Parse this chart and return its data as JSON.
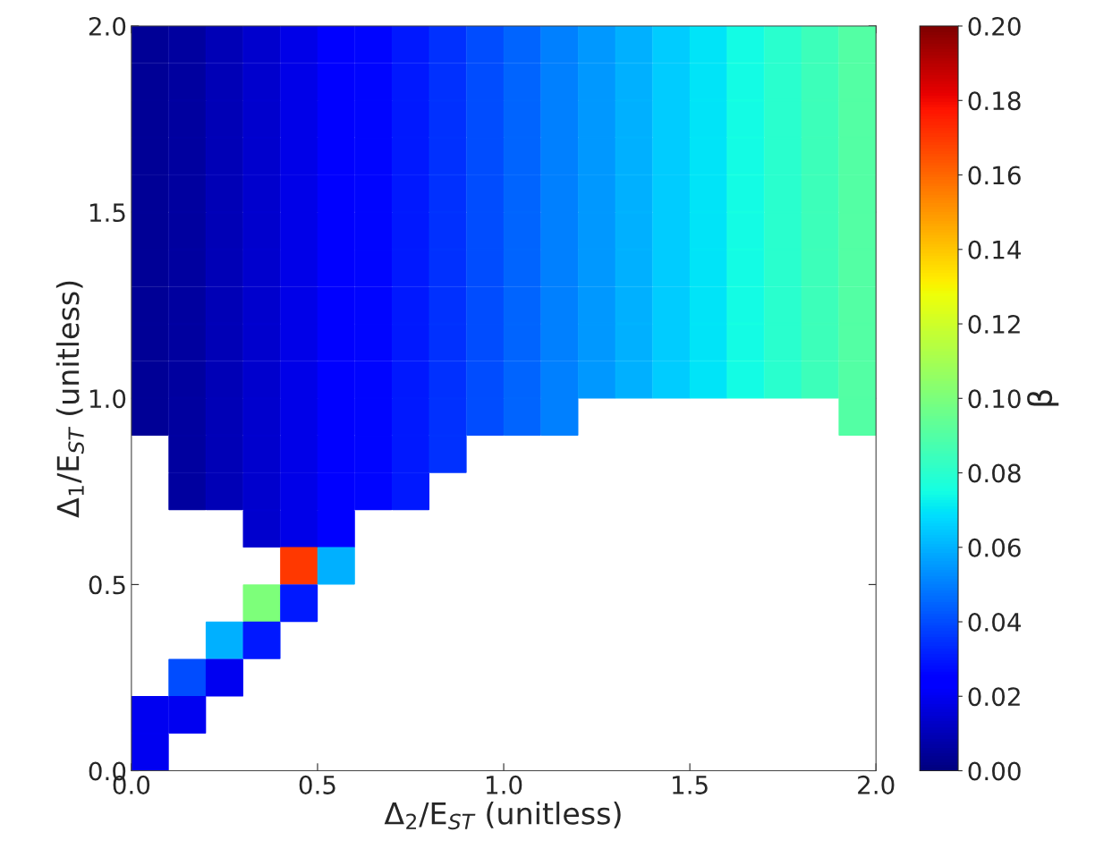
{
  "chart_data": {
    "type": "scatter",
    "xlabel": "Δ$_{2}$/E$_{ST}$ (unitless)",
    "ylabel": "Δ$_{1}$/E$_{ST}$ (unitless)",
    "clabel": "β",
    "marker": "square",
    "xlim": [
      0,
      2
    ],
    "ylim": [
      0,
      2
    ],
    "xticks": [
      {
        "value": 0,
        "label": "0.0"
      },
      {
        "value": 0.5,
        "label": "0.5"
      },
      {
        "value": 1,
        "label": "1.0"
      },
      {
        "value": 1.5,
        "label": "1.5"
      },
      {
        "value": 2,
        "label": "2.0"
      }
    ],
    "yticks": [
      {
        "value": 0,
        "label": "0.0"
      },
      {
        "value": 0.5,
        "label": "0.5"
      },
      {
        "value": 1,
        "label": "1.0"
      },
      {
        "value": 1.5,
        "label": "1.5"
      },
      {
        "value": 2,
        "label": "2.0"
      }
    ],
    "clim": [
      0,
      0.2
    ],
    "cticks": [
      {
        "value": 0,
        "label": "0.00"
      },
      {
        "value": 0.02,
        "label": "0.02"
      },
      {
        "value": 0.04,
        "label": "0.04"
      },
      {
        "value": 0.06,
        "label": "0.06"
      },
      {
        "value": 0.08,
        "label": "0.08"
      },
      {
        "value": 0.1,
        "label": "0.10"
      },
      {
        "value": 0.12,
        "label": "0.12"
      },
      {
        "value": 0.14,
        "label": "0.14"
      },
      {
        "value": 0.16,
        "label": "0.16"
      },
      {
        "value": 0.18,
        "label": "0.18"
      },
      {
        "value": 0.2,
        "label": "0.20"
      }
    ],
    "series": [
      {
        "x": [
          0.05,
          0.15,
          0.25,
          0.35,
          0.45,
          0.55,
          0.65,
          0.75,
          0.85,
          0.95,
          1.05,
          1.15,
          1.25,
          1.35,
          1.45,
          1.55,
          1.65,
          1.75,
          1.85,
          1.95
        ],
        "values": [
          1.95,
          1.95,
          1.95,
          1.95,
          1.95,
          1.95,
          1.95,
          1.95,
          1.95,
          1.95,
          1.95,
          1.95,
          1.95,
          1.95,
          1.95,
          1.95,
          1.95,
          1.95,
          1.95,
          1.95
        ],
        "cvalues": [
          0.004,
          0.006,
          0.01,
          0.014,
          0.018,
          0.022,
          0.026,
          0.03,
          0.035,
          0.04,
          0.045,
          0.05,
          0.055,
          0.06,
          0.065,
          0.07,
          0.075,
          0.08,
          0.085,
          0.09
        ],
        "colors": [
          "#000097",
          "#0000a2",
          "#0000b9",
          "#0000d0",
          "#0000e8",
          "#0000ff",
          "#0005ff",
          "#001aff",
          "#0033ff",
          "#004dff",
          "#0066ff",
          "#0080ff",
          "#0099ff",
          "#00b3ff",
          "#00ccff",
          "#00e6f7",
          "#15ffe2",
          "#29ffce",
          "#3effb9",
          "#52ffa4"
        ]
      },
      {
        "x": [
          0.05,
          0.15,
          0.25,
          0.35,
          0.45,
          0.55,
          0.65,
          0.75,
          0.85,
          0.95,
          1.05,
          1.15,
          1.25,
          1.35,
          1.45,
          1.55,
          1.65,
          1.75,
          1.85,
          1.95
        ],
        "values": [
          1.85,
          1.85,
          1.85,
          1.85,
          1.85,
          1.85,
          1.85,
          1.85,
          1.85,
          1.85,
          1.85,
          1.85,
          1.85,
          1.85,
          1.85,
          1.85,
          1.85,
          1.85,
          1.85,
          1.85
        ],
        "cvalues": [
          0.004,
          0.006,
          0.01,
          0.014,
          0.018,
          0.022,
          0.026,
          0.03,
          0.035,
          0.04,
          0.045,
          0.05,
          0.055,
          0.06,
          0.065,
          0.07,
          0.075,
          0.08,
          0.085,
          0.09
        ],
        "colors": [
          "#000097",
          "#0000a2",
          "#0000b9",
          "#0000d0",
          "#0000e8",
          "#0000ff",
          "#0005ff",
          "#001aff",
          "#0033ff",
          "#004dff",
          "#0066ff",
          "#0080ff",
          "#0099ff",
          "#00b3ff",
          "#00ccff",
          "#00e6f7",
          "#15ffe2",
          "#29ffce",
          "#3effb9",
          "#52ffa4"
        ]
      },
      {
        "x": [
          0.05,
          0.15,
          0.25,
          0.35,
          0.45,
          0.55,
          0.65,
          0.75,
          0.85,
          0.95,
          1.05,
          1.15,
          1.25,
          1.35,
          1.45,
          1.55,
          1.65,
          1.75,
          1.85,
          1.95
        ],
        "values": [
          1.75,
          1.75,
          1.75,
          1.75,
          1.75,
          1.75,
          1.75,
          1.75,
          1.75,
          1.75,
          1.75,
          1.75,
          1.75,
          1.75,
          1.75,
          1.75,
          1.75,
          1.75,
          1.75,
          1.75
        ],
        "cvalues": [
          0.004,
          0.006,
          0.01,
          0.014,
          0.018,
          0.022,
          0.026,
          0.03,
          0.035,
          0.04,
          0.045,
          0.05,
          0.055,
          0.06,
          0.065,
          0.07,
          0.075,
          0.08,
          0.085,
          0.09
        ],
        "colors": [
          "#000097",
          "#0000a2",
          "#0000b9",
          "#0000d0",
          "#0000e8",
          "#0000ff",
          "#0005ff",
          "#001aff",
          "#0033ff",
          "#004dff",
          "#0066ff",
          "#0080ff",
          "#0099ff",
          "#00b3ff",
          "#00ccff",
          "#00e6f7",
          "#15ffe2",
          "#29ffce",
          "#3effb9",
          "#52ffa4"
        ]
      },
      {
        "x": [
          0.05,
          0.15,
          0.25,
          0.35,
          0.45,
          0.55,
          0.65,
          0.75,
          0.85,
          0.95,
          1.05,
          1.15,
          1.25,
          1.35,
          1.45,
          1.55,
          1.65,
          1.75,
          1.85,
          1.95
        ],
        "values": [
          1.65,
          1.65,
          1.65,
          1.65,
          1.65,
          1.65,
          1.65,
          1.65,
          1.65,
          1.65,
          1.65,
          1.65,
          1.65,
          1.65,
          1.65,
          1.65,
          1.65,
          1.65,
          1.65,
          1.65
        ],
        "cvalues": [
          0.004,
          0.006,
          0.01,
          0.014,
          0.018,
          0.022,
          0.026,
          0.03,
          0.035,
          0.04,
          0.045,
          0.05,
          0.055,
          0.06,
          0.065,
          0.07,
          0.075,
          0.08,
          0.085,
          0.09
        ],
        "colors": [
          "#000097",
          "#0000a2",
          "#0000b9",
          "#0000d0",
          "#0000e8",
          "#0000ff",
          "#0005ff",
          "#001aff",
          "#0033ff",
          "#004dff",
          "#0066ff",
          "#0080ff",
          "#0099ff",
          "#00b3ff",
          "#00ccff",
          "#00e6f7",
          "#15ffe2",
          "#29ffce",
          "#3effb9",
          "#52ffa4"
        ]
      },
      {
        "x": [
          0.05,
          0.15,
          0.25,
          0.35,
          0.45,
          0.55,
          0.65,
          0.75,
          0.85,
          0.95,
          1.05,
          1.15,
          1.25,
          1.35,
          1.45,
          1.55,
          1.65,
          1.75,
          1.85,
          1.95
        ],
        "values": [
          1.55,
          1.55,
          1.55,
          1.55,
          1.55,
          1.55,
          1.55,
          1.55,
          1.55,
          1.55,
          1.55,
          1.55,
          1.55,
          1.55,
          1.55,
          1.55,
          1.55,
          1.55,
          1.55,
          1.55
        ],
        "cvalues": [
          0.004,
          0.006,
          0.01,
          0.014,
          0.018,
          0.022,
          0.026,
          0.03,
          0.035,
          0.04,
          0.045,
          0.05,
          0.055,
          0.06,
          0.065,
          0.07,
          0.075,
          0.08,
          0.085,
          0.09
        ],
        "colors": [
          "#000097",
          "#0000a2",
          "#0000b9",
          "#0000d0",
          "#0000e8",
          "#0000ff",
          "#0005ff",
          "#001aff",
          "#0033ff",
          "#004dff",
          "#0066ff",
          "#0080ff",
          "#0099ff",
          "#00b3ff",
          "#00ccff",
          "#00e6f7",
          "#15ffe2",
          "#29ffce",
          "#3effb9",
          "#52ffa4"
        ]
      },
      {
        "x": [
          0.05,
          0.15,
          0.25,
          0.35,
          0.45,
          0.55,
          0.65,
          0.75,
          0.85,
          0.95,
          1.05,
          1.15,
          1.25,
          1.35,
          1.45,
          1.55,
          1.65,
          1.75,
          1.85,
          1.95
        ],
        "values": [
          1.45,
          1.45,
          1.45,
          1.45,
          1.45,
          1.45,
          1.45,
          1.45,
          1.45,
          1.45,
          1.45,
          1.45,
          1.45,
          1.45,
          1.45,
          1.45,
          1.45,
          1.45,
          1.45,
          1.45
        ],
        "cvalues": [
          0.004,
          0.006,
          0.01,
          0.014,
          0.018,
          0.022,
          0.026,
          0.03,
          0.035,
          0.04,
          0.045,
          0.05,
          0.055,
          0.06,
          0.065,
          0.07,
          0.075,
          0.08,
          0.085,
          0.09
        ],
        "colors": [
          "#000097",
          "#0000a2",
          "#0000b9",
          "#0000d0",
          "#0000e8",
          "#0000ff",
          "#0005ff",
          "#001aff",
          "#0033ff",
          "#004dff",
          "#0066ff",
          "#0080ff",
          "#0099ff",
          "#00b3ff",
          "#00ccff",
          "#00e6f7",
          "#15ffe2",
          "#29ffce",
          "#3effb9",
          "#52ffa4"
        ]
      },
      {
        "x": [
          0.05,
          0.15,
          0.25,
          0.35,
          0.45,
          0.55,
          0.65,
          0.75,
          0.85,
          0.95,
          1.05,
          1.15,
          1.25,
          1.35,
          1.45,
          1.55,
          1.65,
          1.75,
          1.85,
          1.95
        ],
        "values": [
          1.35,
          1.35,
          1.35,
          1.35,
          1.35,
          1.35,
          1.35,
          1.35,
          1.35,
          1.35,
          1.35,
          1.35,
          1.35,
          1.35,
          1.35,
          1.35,
          1.35,
          1.35,
          1.35,
          1.35
        ],
        "cvalues": [
          0.004,
          0.006,
          0.01,
          0.014,
          0.018,
          0.022,
          0.026,
          0.03,
          0.035,
          0.04,
          0.045,
          0.05,
          0.055,
          0.06,
          0.065,
          0.07,
          0.075,
          0.08,
          0.085,
          0.09
        ],
        "colors": [
          "#000097",
          "#0000a2",
          "#0000b9",
          "#0000d0",
          "#0000e8",
          "#0000ff",
          "#0005ff",
          "#001aff",
          "#0033ff",
          "#004dff",
          "#0066ff",
          "#0080ff",
          "#0099ff",
          "#00b3ff",
          "#00ccff",
          "#00e6f7",
          "#15ffe2",
          "#29ffce",
          "#3effb9",
          "#52ffa4"
        ]
      },
      {
        "x": [
          0.05,
          0.15,
          0.25,
          0.35,
          0.45,
          0.55,
          0.65,
          0.75,
          0.85,
          0.95,
          1.05,
          1.15,
          1.25,
          1.35,
          1.45,
          1.55,
          1.65,
          1.75,
          1.85,
          1.95
        ],
        "values": [
          1.25,
          1.25,
          1.25,
          1.25,
          1.25,
          1.25,
          1.25,
          1.25,
          1.25,
          1.25,
          1.25,
          1.25,
          1.25,
          1.25,
          1.25,
          1.25,
          1.25,
          1.25,
          1.25,
          1.25
        ],
        "cvalues": [
          0.004,
          0.006,
          0.01,
          0.014,
          0.018,
          0.022,
          0.026,
          0.03,
          0.035,
          0.04,
          0.045,
          0.05,
          0.055,
          0.06,
          0.065,
          0.07,
          0.075,
          0.08,
          0.085,
          0.09
        ],
        "colors": [
          "#000097",
          "#0000a2",
          "#0000b9",
          "#0000d0",
          "#0000e8",
          "#0000ff",
          "#0005ff",
          "#001aff",
          "#0033ff",
          "#004dff",
          "#0066ff",
          "#0080ff",
          "#0099ff",
          "#00b3ff",
          "#00ccff",
          "#00e6f7",
          "#15ffe2",
          "#29ffce",
          "#3effb9",
          "#52ffa4"
        ]
      },
      {
        "x": [
          0.05,
          0.15,
          0.25,
          0.35,
          0.45,
          0.55,
          0.65,
          0.75,
          0.85,
          0.95,
          1.05,
          1.15,
          1.25,
          1.35,
          1.45,
          1.55,
          1.65,
          1.75,
          1.85,
          1.95
        ],
        "values": [
          1.15,
          1.15,
          1.15,
          1.15,
          1.15,
          1.15,
          1.15,
          1.15,
          1.15,
          1.15,
          1.15,
          1.15,
          1.15,
          1.15,
          1.15,
          1.15,
          1.15,
          1.15,
          1.15,
          1.15
        ],
        "cvalues": [
          0.004,
          0.006,
          0.01,
          0.014,
          0.018,
          0.022,
          0.026,
          0.03,
          0.035,
          0.04,
          0.045,
          0.05,
          0.055,
          0.06,
          0.065,
          0.07,
          0.075,
          0.08,
          0.085,
          0.09
        ],
        "colors": [
          "#000097",
          "#0000a2",
          "#0000b9",
          "#0000d0",
          "#0000e8",
          "#0000ff",
          "#0005ff",
          "#001aff",
          "#0033ff",
          "#004dff",
          "#0066ff",
          "#0080ff",
          "#0099ff",
          "#00b3ff",
          "#00ccff",
          "#00e6f7",
          "#15ffe2",
          "#29ffce",
          "#3effb9",
          "#52ffa4"
        ]
      },
      {
        "x": [
          0.05,
          0.15,
          0.25,
          0.35,
          0.45,
          0.55,
          0.65,
          0.75,
          0.85,
          0.95,
          1.05,
          1.15,
          1.25,
          1.35,
          1.45,
          1.55,
          1.65,
          1.75,
          1.85,
          1.95
        ],
        "values": [
          1.05,
          1.05,
          1.05,
          1.05,
          1.05,
          1.05,
          1.05,
          1.05,
          1.05,
          1.05,
          1.05,
          1.05,
          1.05,
          1.05,
          1.05,
          1.05,
          1.05,
          1.05,
          1.05,
          1.05
        ],
        "cvalues": [
          0.004,
          0.006,
          0.01,
          0.014,
          0.018,
          0.022,
          0.026,
          0.03,
          0.035,
          0.04,
          0.045,
          0.05,
          0.055,
          0.06,
          0.065,
          0.07,
          0.075,
          0.08,
          0.085,
          0.09
        ],
        "colors": [
          "#000097",
          "#0000a2",
          "#0000b9",
          "#0000d0",
          "#0000e8",
          "#0000ff",
          "#0005ff",
          "#001aff",
          "#0033ff",
          "#004dff",
          "#0066ff",
          "#0080ff",
          "#0099ff",
          "#00b3ff",
          "#00ccff",
          "#00e6f7",
          "#15ffe2",
          "#29ffce",
          "#3effb9",
          "#52ffa4"
        ]
      },
      {
        "x": [
          0.05,
          0.15,
          0.25,
          0.35,
          0.45,
          0.55,
          0.65,
          0.75,
          0.85,
          0.95,
          1.05,
          1.15,
          1.95
        ],
        "values": [
          0.95,
          0.95,
          0.95,
          0.95,
          0.95,
          0.95,
          0.95,
          0.95,
          0.95,
          0.95,
          0.95,
          0.95,
          0.95
        ],
        "cvalues": [
          0.004,
          0.006,
          0.01,
          0.014,
          0.018,
          0.022,
          0.026,
          0.03,
          0.035,
          0.04,
          0.045,
          0.05,
          0.09
        ],
        "colors": [
          "#000097",
          "#0000a2",
          "#0000b9",
          "#0000d0",
          "#0000e8",
          "#0000ff",
          "#0005ff",
          "#001aff",
          "#0033ff",
          "#004dff",
          "#0066ff",
          "#0080ff",
          "#52ffa4"
        ]
      },
      {
        "x": [
          0.15,
          0.25,
          0.35,
          0.45,
          0.55,
          0.65,
          0.75,
          0.85
        ],
        "values": [
          0.85,
          0.85,
          0.85,
          0.85,
          0.85,
          0.85,
          0.85,
          0.85
        ],
        "cvalues": [
          0.006,
          0.01,
          0.014,
          0.018,
          0.022,
          0.026,
          0.03,
          0.035
        ],
        "colors": [
          "#0000a2",
          "#0000b9",
          "#0000d0",
          "#0000e8",
          "#0000ff",
          "#0005ff",
          "#001aff",
          "#0033ff"
        ]
      },
      {
        "x": [
          0.15,
          0.25,
          0.35,
          0.45,
          0.55,
          0.65,
          0.75
        ],
        "values": [
          0.75,
          0.75,
          0.75,
          0.75,
          0.75,
          0.75,
          0.75
        ],
        "cvalues": [
          0.006,
          0.01,
          0.014,
          0.018,
          0.022,
          0.026,
          0.03
        ],
        "colors": [
          "#0000a2",
          "#0000b9",
          "#0000d0",
          "#0000e8",
          "#0000ff",
          "#0005ff",
          "#001aff"
        ]
      },
      {
        "x": [
          0.35,
          0.45,
          0.55
        ],
        "values": [
          0.65,
          0.65,
          0.65
        ],
        "cvalues": [
          0.014,
          0.018,
          0.022
        ],
        "colors": [
          "#0000d0",
          "#0000e8",
          "#0000ff"
        ]
      },
      {
        "x": [
          0.45,
          0.55
        ],
        "values": [
          0.55,
          0.55
        ],
        "cvalues": [
          0.17,
          0.06
        ],
        "colors": [
          "#ff3900",
          "#00b3ff"
        ]
      },
      {
        "x": [
          0.35,
          0.45
        ],
        "values": [
          0.45,
          0.45
        ],
        "cvalues": [
          0.1,
          0.03
        ],
        "colors": [
          "#7bff7b",
          "#001aff"
        ]
      },
      {
        "x": [
          0.25,
          0.35
        ],
        "values": [
          0.35,
          0.35
        ],
        "cvalues": [
          0.06,
          0.03
        ],
        "colors": [
          "#00b3ff",
          "#001aff"
        ]
      },
      {
        "x": [
          0.15,
          0.25
        ],
        "values": [
          0.25,
          0.25
        ],
        "cvalues": [
          0.04,
          0.02
        ],
        "colors": [
          "#004dff",
          "#0000f3"
        ]
      },
      {
        "x": [
          0.05,
          0.15
        ],
        "values": [
          0.15,
          0.15
        ],
        "cvalues": [
          0.02,
          0.02
        ],
        "colors": [
          "#0000f3",
          "#0000f3"
        ]
      },
      {
        "x": [
          0.05
        ],
        "values": [
          0.05
        ],
        "cvalues": [
          0.02
        ],
        "colors": [
          "#0000f3"
        ]
      }
    ]
  }
}
